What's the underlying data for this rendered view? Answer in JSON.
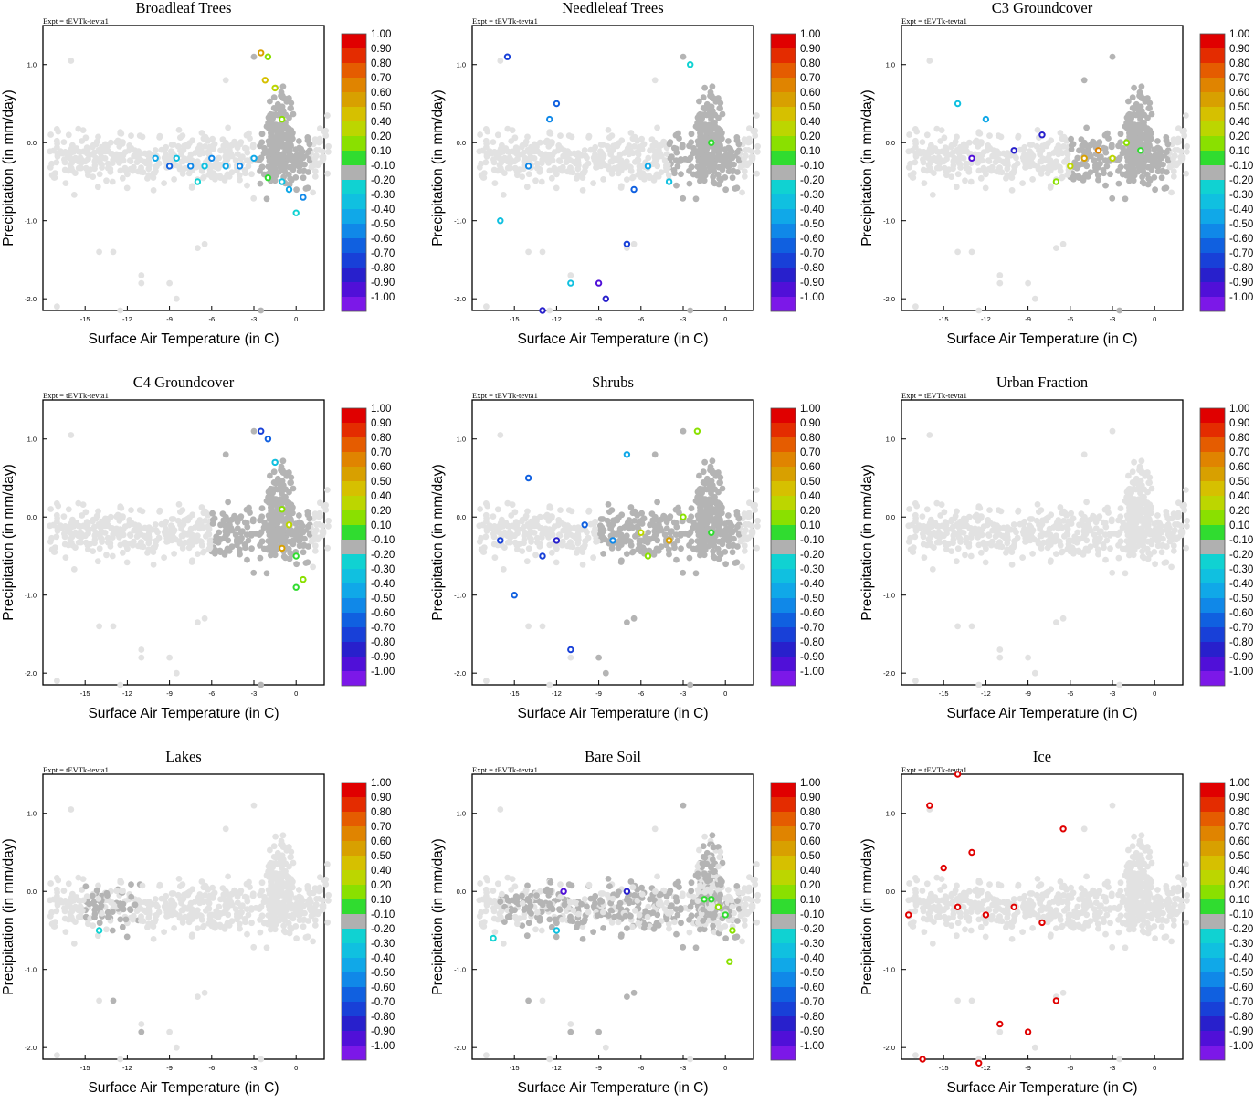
{
  "figure": {
    "experiment_label": "Expt = tEVTk-tevta1",
    "xlabel": "Surface Air Temperature (in C)",
    "ylabel": "Precipitation (in mm/day)",
    "x_ticks": [
      "-15",
      "-12",
      "-9",
      "-6",
      "-3",
      "0"
    ],
    "y_ticks": [
      "1.0",
      "0.0",
      "-1.0",
      "-2.0"
    ],
    "colorbar_labels": [
      "1.00",
      "0.90",
      "0.80",
      "0.70",
      "0.60",
      "0.50",
      "0.40",
      "0.20",
      "0.10",
      "-0.10",
      "-0.20",
      "-0.30",
      "-0.40",
      "-0.50",
      "-0.60",
      "-0.70",
      "-0.80",
      "-0.90",
      "-1.00"
    ],
    "colorbar_colors": [
      "#e00000",
      "#e42c00",
      "#e55c00",
      "#e08400",
      "#d8a000",
      "#d6c000",
      "#bcd600",
      "#8ae000",
      "#30dc30",
      "#b0b0b0",
      "#10d2d2",
      "#10c0e0",
      "#10a8e8",
      "#1088e8",
      "#1060e0",
      "#1840d8",
      "#2820cc",
      "#5010d8",
      "#7c18e8"
    ]
  },
  "chart_data": [
    {
      "type": "scatter",
      "title": "Broadleaf Trees",
      "xlabel": "Surface Air Temperature (in C)",
      "ylabel": "Precipitation (in mm/day)",
      "xlim": [
        -18,
        2
      ],
      "ylim": [
        -2.15,
        1.5
      ],
      "color_scale": "correlation",
      "highlight": [
        [
          -10,
          -0.2,
          -0.4
        ],
        [
          -9,
          -0.3,
          -0.6
        ],
        [
          -8.5,
          -0.2,
          -0.3
        ],
        [
          -7.5,
          -0.3,
          -0.5
        ],
        [
          -7,
          -0.5,
          -0.2
        ],
        [
          -6.5,
          -0.3,
          -0.3
        ],
        [
          -6,
          -0.2,
          -0.5
        ],
        [
          -5,
          -0.3,
          -0.4
        ],
        [
          -4,
          -0.3,
          -0.5
        ],
        [
          -3,
          -0.2,
          -0.4
        ],
        [
          -2.5,
          1.15,
          0.6
        ],
        [
          -2,
          1.1,
          0.3
        ],
        [
          -2.2,
          0.8,
          0.5
        ],
        [
          -1.5,
          0.7,
          0.4
        ],
        [
          -1,
          -0.5,
          -0.3
        ],
        [
          -0.5,
          -0.6,
          -0.4
        ],
        [
          0,
          -0.9,
          -0.2
        ],
        [
          0.5,
          -0.7,
          -0.5
        ],
        [
          -2,
          -0.45,
          0.1
        ],
        [
          -1,
          0.3,
          0.2
        ]
      ]
    },
    {
      "type": "scatter",
      "title": "Needleleaf Trees",
      "xlabel": "Surface Air Temperature (in C)",
      "ylabel": "Precipitation (in mm/day)",
      "xlim": [
        -18,
        2
      ],
      "ylim": [
        -2.15,
        1.5
      ],
      "color_scale": "correlation",
      "highlight": [
        [
          -15.5,
          1.1,
          -0.7
        ],
        [
          -14,
          -0.3,
          -0.5
        ],
        [
          -12,
          0.5,
          -0.6
        ],
        [
          -11,
          -1.8,
          -0.3
        ],
        [
          -9,
          -1.8,
          -0.9
        ],
        [
          -8.5,
          -2,
          -0.8
        ],
        [
          -7,
          -1.3,
          -0.7
        ],
        [
          -6.5,
          -0.6,
          -0.6
        ],
        [
          -5.5,
          -0.3,
          -0.4
        ],
        [
          -4,
          -0.5,
          -0.3
        ],
        [
          -2.5,
          1,
          -0.2
        ],
        [
          -1,
          0,
          0.1
        ],
        [
          -16,
          -1,
          -0.3
        ],
        [
          -13,
          -2.15,
          -0.8
        ],
        [
          -12.5,
          0.3,
          -0.5
        ]
      ]
    },
    {
      "type": "scatter",
      "title": "C3 Groundcover",
      "xlabel": "Surface Air Temperature (in C)",
      "ylabel": "Precipitation (in mm/day)",
      "xlim": [
        -18,
        2
      ],
      "ylim": [
        -2.15,
        1.5
      ],
      "color_scale": "correlation",
      "highlight": [
        [
          -14,
          0.5,
          -0.3
        ],
        [
          -13,
          -0.2,
          -0.9
        ],
        [
          -12,
          0.3,
          -0.4
        ],
        [
          -10,
          -0.1,
          -0.8
        ],
        [
          -8,
          0.1,
          -0.8
        ],
        [
          -6,
          -0.3,
          0.4
        ],
        [
          -5,
          -0.2,
          0.6
        ],
        [
          -4,
          -0.1,
          0.7
        ],
        [
          -3,
          -0.2,
          0.4
        ],
        [
          -2,
          0,
          0.2
        ],
        [
          -1,
          -0.1,
          0.1
        ],
        [
          -7,
          -0.5,
          0.3
        ]
      ]
    },
    {
      "type": "scatter",
      "title": "C4 Groundcover",
      "xlabel": "Surface Air Temperature (in C)",
      "ylabel": "Precipitation (in mm/day)",
      "xlim": [
        -18,
        2
      ],
      "ylim": [
        -2.15,
        1.5
      ],
      "color_scale": "correlation",
      "highlight": [
        [
          -2.5,
          1.1,
          -0.7
        ],
        [
          -2,
          1,
          -0.6
        ],
        [
          -1.5,
          0.7,
          -0.3
        ],
        [
          -1,
          0.1,
          0.2
        ],
        [
          -0.5,
          -0.1,
          0.4
        ],
        [
          0,
          -0.5,
          0.1
        ],
        [
          -1,
          -0.4,
          0.6
        ],
        [
          0.5,
          -0.8,
          0.2
        ],
        [
          0,
          -0.9,
          0.1
        ]
      ]
    },
    {
      "type": "scatter",
      "title": "Shrubs",
      "xlabel": "Surface Air Temperature (in C)",
      "ylabel": "Precipitation (in mm/day)",
      "xlim": [
        -18,
        2
      ],
      "ylim": [
        -2.15,
        1.5
      ],
      "color_scale": "correlation",
      "highlight": [
        [
          -14,
          0.5,
          -0.6
        ],
        [
          -13,
          -0.5,
          -0.7
        ],
        [
          -12,
          -0.3,
          -0.8
        ],
        [
          -10,
          -0.1,
          -0.6
        ],
        [
          -8,
          -0.3,
          -0.5
        ],
        [
          -6,
          -0.2,
          0.4
        ],
        [
          -4,
          -0.3,
          0.6
        ],
        [
          -3,
          0,
          0.3
        ],
        [
          -2,
          1.1,
          0.3
        ],
        [
          -1,
          -0.2,
          0.1
        ],
        [
          -16,
          -0.3,
          -0.7
        ],
        [
          -15,
          -1,
          -0.6
        ],
        [
          -11,
          -1.7,
          -0.7
        ],
        [
          -7,
          0.8,
          -0.4
        ],
        [
          -5.5,
          -0.5,
          0.3
        ]
      ]
    },
    {
      "type": "scatter",
      "title": "Urban Fraction",
      "xlabel": "Surface Air Temperature (in C)",
      "ylabel": "Precipitation (in mm/day)",
      "xlim": [
        -18,
        2
      ],
      "ylim": [
        -2.15,
        1.5
      ],
      "color_scale": "correlation",
      "highlight": []
    },
    {
      "type": "scatter",
      "title": "Lakes",
      "xlabel": "Surface Air Temperature (in C)",
      "ylabel": "Precipitation (in mm/day)",
      "xlim": [
        -18,
        2
      ],
      "ylim": [
        -2.15,
        1.5
      ],
      "color_scale": "correlation",
      "highlight": [
        [
          -14,
          -0.5,
          -0.2
        ]
      ]
    },
    {
      "type": "scatter",
      "title": "Bare Soil",
      "xlabel": "Surface Air Temperature (in C)",
      "ylabel": "Precipitation (in mm/day)",
      "xlim": [
        -18,
        2
      ],
      "ylim": [
        -2.15,
        1.5
      ],
      "color_scale": "correlation",
      "highlight": [
        [
          -1,
          -0.1,
          0.1
        ],
        [
          -0.5,
          -0.2,
          0.2
        ],
        [
          0,
          -0.3,
          0.15
        ],
        [
          0.5,
          -0.5,
          0.3
        ],
        [
          0.3,
          -0.9,
          0.2
        ],
        [
          -1.5,
          -0.1,
          0.1
        ],
        [
          -12,
          -0.5,
          -0.3
        ],
        [
          -16.5,
          -0.6,
          -0.2
        ],
        [
          -11.5,
          0,
          -0.9
        ],
        [
          -7,
          0,
          -0.8
        ]
      ]
    },
    {
      "type": "scatter",
      "title": "Ice",
      "xlabel": "Surface Air Temperature (in C)",
      "ylabel": "Precipitation (in mm/day)",
      "xlim": [
        -18,
        2
      ],
      "ylim": [
        -2.15,
        1.5
      ],
      "color_scale": "correlation",
      "highlight": [
        [
          -16,
          1.1,
          1
        ],
        [
          -15,
          0.3,
          1
        ],
        [
          -14,
          -0.2,
          1
        ],
        [
          -13,
          0.5,
          1
        ],
        [
          -12,
          -0.3,
          1
        ],
        [
          -11,
          -1.7,
          1
        ],
        [
          -10,
          -0.2,
          1
        ],
        [
          -9,
          -1.8,
          1
        ],
        [
          -8,
          -0.4,
          1
        ],
        [
          -6.5,
          0.8,
          1
        ],
        [
          -7,
          -1.4,
          1
        ],
        [
          -17.5,
          -0.3,
          1
        ],
        [
          -16.5,
          -2.15,
          1
        ],
        [
          -12.5,
          -2.2,
          1
        ],
        [
          -14,
          1.5,
          1
        ]
      ]
    }
  ]
}
